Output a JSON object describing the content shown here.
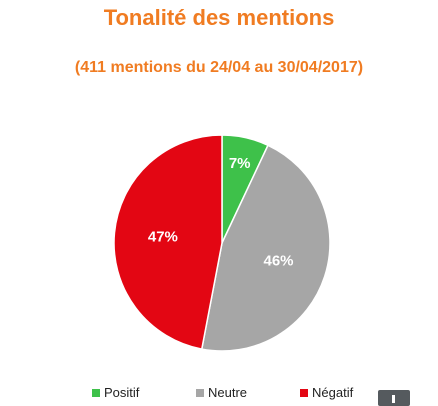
{
  "chart_data": {
    "type": "pie",
    "title": "Tonalité des mentions",
    "subtitle": "(411 mentions du 24/04 au 30/04/2017)",
    "categories": [
      "Positif",
      "Neutre",
      "Négatif"
    ],
    "values": [
      7,
      46,
      47
    ],
    "labels": [
      "7%",
      "46%",
      "47%"
    ],
    "colors": [
      "#3ec14a",
      "#a6a6a6",
      "#e30613"
    ],
    "legend_position": "bottom"
  }
}
